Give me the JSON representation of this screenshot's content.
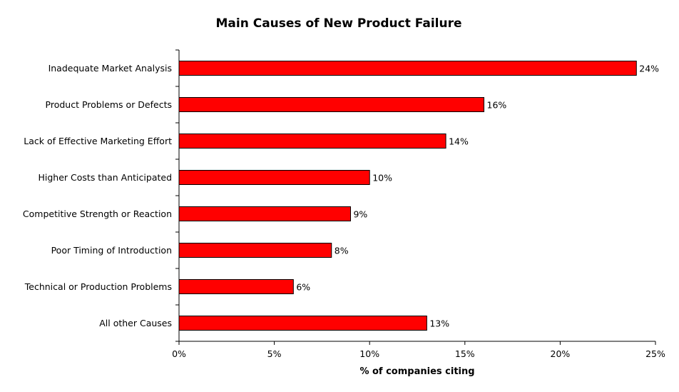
{
  "chart_data": {
    "type": "bar",
    "orientation": "horizontal",
    "title": "Main Causes of New Product Failure",
    "xlabel": "% of companies citing",
    "ylabel": "",
    "categories": [
      "Inadequate Market Analysis",
      "Product Problems or Defects",
      "Lack of Effective Marketing Effort",
      "Higher Costs than Anticipated",
      "Competitive Strength or Reaction",
      "Poor Timing of Introduction",
      "Technical or Production Problems",
      "All other Causes"
    ],
    "values": [
      24,
      16,
      14,
      10,
      9,
      8,
      6,
      13
    ],
    "data_labels": [
      "24%",
      "16%",
      "14%",
      "10%",
      "9%",
      "8%",
      "6%",
      "13%"
    ],
    "xlim": [
      0,
      25
    ],
    "xticks": [
      0,
      5,
      10,
      15,
      20,
      25
    ],
    "xtick_labels": [
      "0%",
      "5%",
      "10%",
      "15%",
      "20%",
      "25%"
    ],
    "bar_color": "#ff0000",
    "grid": false,
    "legend": "none"
  }
}
